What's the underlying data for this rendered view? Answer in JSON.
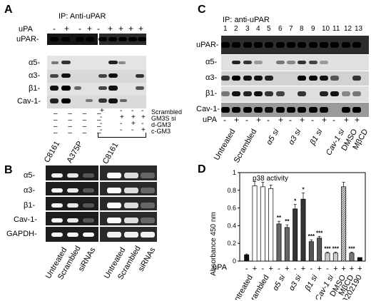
{
  "panelA": {
    "label": "A",
    "ip": "IP:  Anti-uPAR",
    "upa": "uPA",
    "signs": [
      "-",
      "+",
      "-",
      "+",
      "-",
      "+",
      "+",
      "+",
      "+"
    ],
    "rows": [
      "uPAR-",
      "α5-",
      "α3-",
      "β1-",
      "Cav-1-"
    ],
    "treatments": [
      {
        "name": "Scrambled",
        "signs": [
          "+",
          "-",
          "-",
          "-"
        ]
      },
      {
        "name": "GM3S si",
        "signs": [
          "-",
          "+",
          "+",
          "+"
        ]
      },
      {
        "name": "d-GM3",
        "signs": [
          "-",
          "-",
          "+",
          "-"
        ]
      },
      {
        "name": "c-GM3",
        "signs": [
          "-",
          "-",
          "-",
          "+"
        ]
      }
    ],
    "dashes_left": [
      "– – – –",
      "– – – –",
      "– – – –",
      "– – – –"
    ],
    "cells": [
      "C8161",
      "A375P",
      "C8161"
    ]
  },
  "panelB": {
    "label": "B",
    "rows": [
      "α5-",
      "α3-",
      "β1-",
      "Cav-1-",
      "GAPDH-"
    ],
    "lanes": [
      "Untreated",
      "Scrambled",
      "siRNAs",
      "Untreated",
      "Scrambled",
      "siRNAs"
    ]
  },
  "panelC": {
    "label": "C",
    "ip": "IP:  anti-uPAR",
    "lane_numbers": [
      "1",
      "2",
      "3",
      "4",
      "5",
      "6",
      "7",
      "8",
      "9",
      "10",
      "11",
      "12",
      "13"
    ],
    "rows": [
      "uPAR-",
      "α5-",
      "α3-",
      "β1-",
      "Cav-1-"
    ],
    "upa": "uPA",
    "signs": [
      "-",
      "+",
      "-",
      "+",
      "-",
      "+",
      "-",
      "+",
      "-",
      "+",
      "-",
      "+",
      "+"
    ],
    "lanes": [
      "Untreated",
      "Scrambled",
      "α5 si",
      "α3 si",
      "β1 si",
      "Cav-1 si",
      "DMSO",
      "MβCD"
    ]
  },
  "panelD": {
    "label": "D",
    "title": "p38 activity",
    "ylabel": "Absorbance 450 nm",
    "upa": "uPA",
    "signs": [
      "-",
      "+",
      "-",
      "+",
      "-",
      "+",
      "-",
      "+",
      "-",
      "+",
      "-",
      "+",
      "+",
      "+",
      "+"
    ],
    "groups": [
      "Untreated",
      "Scrambled",
      "α5 si",
      "α3 si",
      "β1 si",
      "Cav-1 si",
      "DMSO",
      "MβCD",
      "SB202190"
    ],
    "yticks": [
      "0",
      "0.2",
      "0.4",
      "0.6",
      "0.8",
      "1"
    ]
  },
  "chart_data": {
    "type": "bar",
    "title": "p38 activity",
    "ylabel": "Absorbance 450 nm",
    "ylim": [
      0,
      1
    ],
    "categories": [
      "Untreated -",
      "Untreated +",
      "Scrambled -",
      "Scrambled +",
      "α5 si -",
      "α5 si +",
      "α3 si -",
      "α3 si +",
      "β1 si -",
      "β1 si +",
      "Cav-1 si -",
      "Cav-1 si +",
      "DMSO +",
      "MβCD +",
      "SB202190 +"
    ],
    "values": [
      0.07,
      0.85,
      0.84,
      0.82,
      0.42,
      0.38,
      0.59,
      0.7,
      0.22,
      0.26,
      0.09,
      0.09,
      0.84,
      0.09,
      0.04
    ],
    "errors": [
      0.01,
      0.05,
      0.05,
      0.04,
      0.03,
      0.03,
      0.05,
      0.07,
      0.02,
      0.02,
      0.01,
      0.01,
      0.05,
      0.01,
      0.005
    ],
    "annotations": [
      "",
      "",
      "",
      "",
      "**",
      "**",
      "*",
      "*",
      "***",
      "***",
      "***",
      "***",
      "",
      "***",
      ""
    ],
    "fills": [
      "#111111",
      "#ffffff",
      "#ffffff",
      "#ffffff",
      "#666666",
      "#666666",
      "#333333",
      "#333333",
      "#555555",
      "#555555",
      "#cccccc",
      "#cccccc",
      "#bbbbbb",
      "#777777",
      "#111111"
    ]
  }
}
